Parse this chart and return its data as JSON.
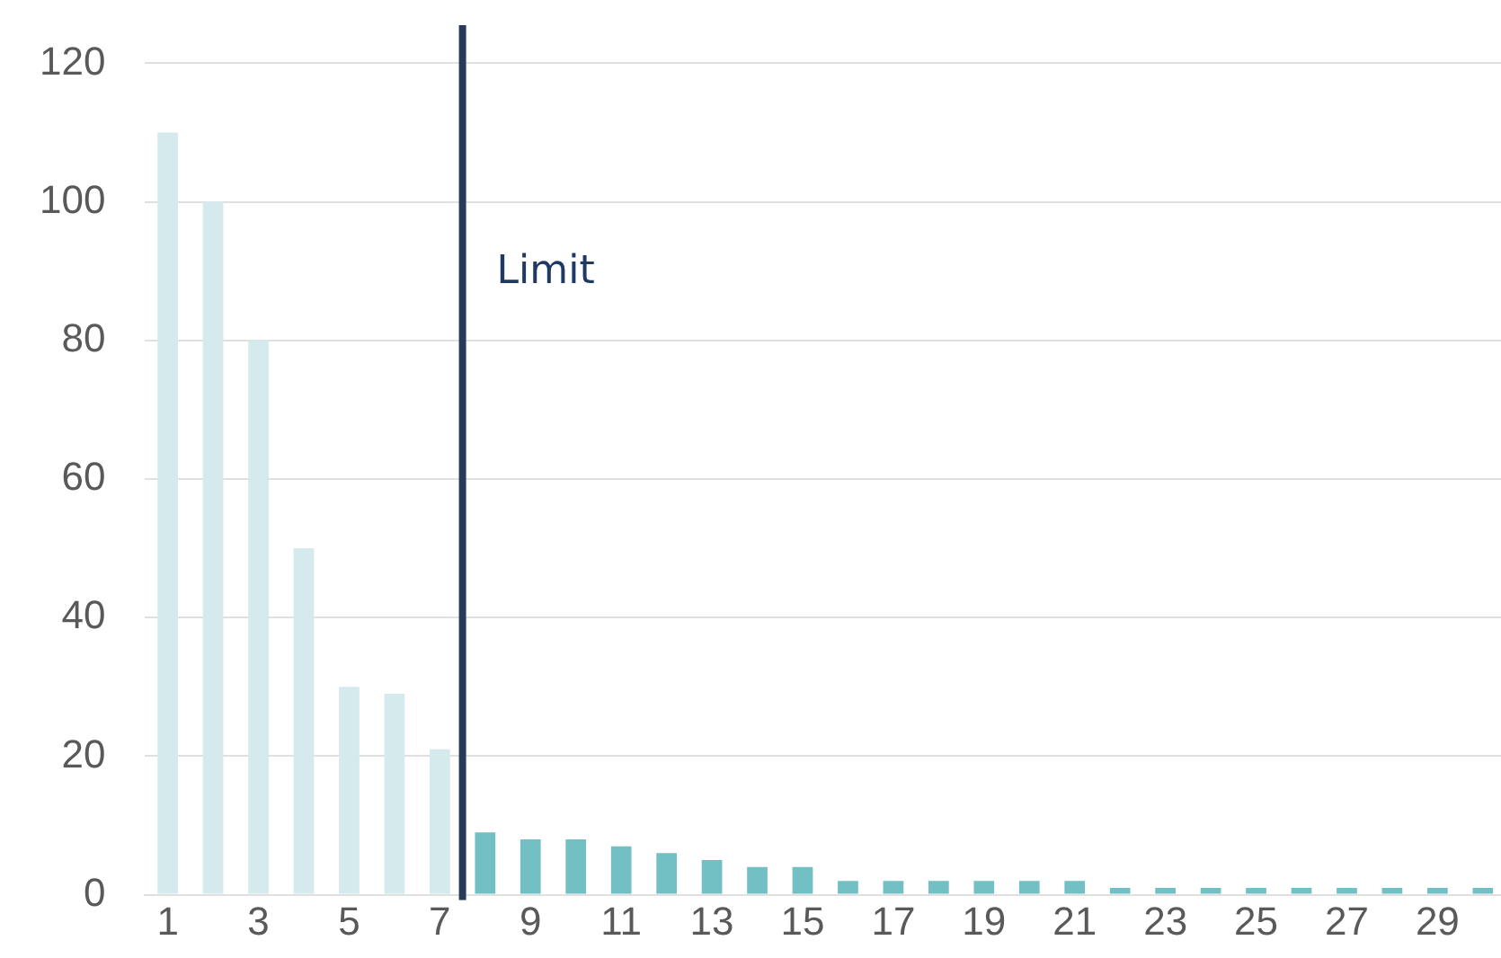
{
  "chart_data": {
    "type": "bar",
    "x": [
      1,
      2,
      3,
      4,
      5,
      6,
      7,
      8,
      9,
      10,
      11,
      12,
      13,
      14,
      15,
      16,
      17,
      18,
      19,
      20,
      21,
      22,
      23,
      24,
      25,
      26,
      27,
      28,
      29,
      30
    ],
    "values": [
      110,
      100,
      80,
      50,
      30,
      29,
      21,
      9,
      8,
      8,
      7,
      6,
      5,
      4,
      4,
      2,
      2,
      2,
      2,
      2,
      2,
      1,
      1,
      1,
      1,
      1,
      1,
      1,
      1,
      1
    ],
    "colors": [
      "#d4eaed",
      "#d4eaed",
      "#d4eaed",
      "#d4eaed",
      "#d4eaed",
      "#d4eaed",
      "#d4eaed",
      "#72bfc4",
      "#72bfc4",
      "#72bfc4",
      "#72bfc4",
      "#72bfc4",
      "#72bfc4",
      "#72bfc4",
      "#72bfc4",
      "#72bfc4",
      "#72bfc4",
      "#72bfc4",
      "#72bfc4",
      "#72bfc4",
      "#72bfc4",
      "#72bfc4",
      "#72bfc4",
      "#72bfc4",
      "#72bfc4",
      "#72bfc4",
      "#72bfc4",
      "#72bfc4",
      "#72bfc4",
      "#72bfc4"
    ],
    "xlim": [
      0.5,
      30.4
    ],
    "xticks": [
      1,
      3,
      5,
      7,
      9,
      11,
      13,
      15,
      17,
      19,
      21,
      23,
      25,
      27,
      29
    ],
    "ylim": [
      0,
      120
    ],
    "yticks": [
      0,
      20,
      40,
      60,
      80,
      100,
      120
    ],
    "grid": "y",
    "ref_lines": [
      {
        "axis": "x",
        "value": 7.5,
        "label": "Limit",
        "color": "#263a5a"
      }
    ]
  }
}
